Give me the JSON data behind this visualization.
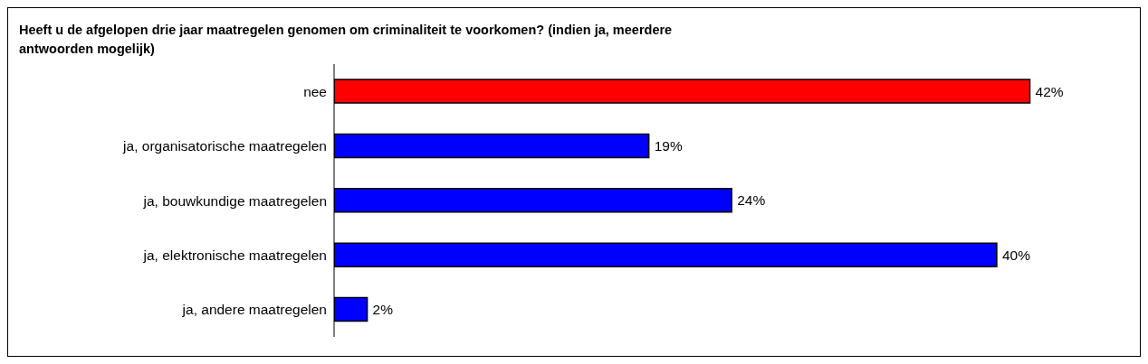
{
  "chart_data": {
    "type": "bar",
    "orientation": "horizontal",
    "title": "Heeft u de afgelopen drie jaar maatregelen genomen om criminaliteit te voorkomen? (indien ja, meerdere antwoorden mogelijk)",
    "categories": [
      "nee",
      "ja, organisatorische maatregelen",
      "ja, bouwkundige maatregelen",
      "ja, elektronische maatregelen",
      "ja, andere maatregelen"
    ],
    "values": [
      42,
      19,
      24,
      40,
      2
    ],
    "colors": [
      "#ff0000",
      "#0000ff",
      "#0000ff",
      "#0000ff",
      "#0000ff"
    ],
    "value_labels": [
      "42%",
      "19%",
      "24%",
      "40%",
      "2%"
    ]
  }
}
